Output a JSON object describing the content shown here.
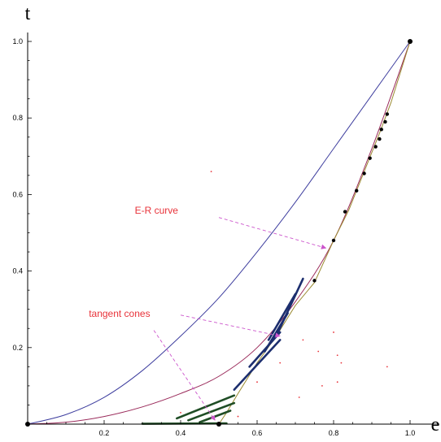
{
  "chart_data": {
    "type": "line",
    "xlabel": "e",
    "ylabel": "t",
    "xlim": [
      0,
      1.0
    ],
    "ylim": [
      0,
      1.0
    ],
    "x_ticks": [
      "0.2",
      "0.4",
      "0.6",
      "0.8",
      "1.0"
    ],
    "y_ticks": [
      "0.2",
      "0.4",
      "0.6",
      "0.8",
      "1.0"
    ],
    "colors": {
      "blue_curve": "#3d3d9e",
      "er_curve": "#9a2a5a",
      "upper_segment": "#9a8a30",
      "tangent_lines": "#1c2e6e",
      "lower_tangent_lines": "#1f4d25",
      "annotation": "#e8333a",
      "annotation_arrow": "#cc55cc",
      "points": "#000000",
      "scatter_dots": "#e8333a"
    },
    "series": [
      {
        "id": "upper-curve",
        "kind": "curve",
        "color_key": "blue_curve",
        "points": [
          [
            0,
            0
          ],
          [
            0.1,
            0.025
          ],
          [
            0.2,
            0.07
          ],
          [
            0.3,
            0.14
          ],
          [
            0.4,
            0.23
          ],
          [
            0.5,
            0.33
          ],
          [
            0.6,
            0.45
          ],
          [
            0.7,
            0.58
          ],
          [
            0.8,
            0.72
          ],
          [
            0.9,
            0.86
          ],
          [
            1.0,
            1.0
          ]
        ]
      },
      {
        "id": "er-curve",
        "kind": "curve",
        "color_key": "er_curve",
        "points": [
          [
            0,
            0
          ],
          [
            0.1,
            0.005
          ],
          [
            0.2,
            0.02
          ],
          [
            0.3,
            0.045
          ],
          [
            0.4,
            0.08
          ],
          [
            0.5,
            0.125
          ],
          [
            0.6,
            0.2
          ],
          [
            0.7,
            0.32
          ],
          [
            0.8,
            0.48
          ],
          [
            0.9,
            0.72
          ],
          [
            1.0,
            1.0
          ]
        ]
      },
      {
        "id": "polygonal-line",
        "kind": "curve",
        "color_key": "upper_segment",
        "points": [
          [
            0.5,
            0
          ],
          [
            0.52,
            0.03
          ],
          [
            0.55,
            0.08
          ],
          [
            0.6,
            0.16
          ],
          [
            0.65,
            0.23
          ],
          [
            0.7,
            0.31
          ],
          [
            0.75,
            0.37
          ],
          [
            0.8,
            0.48
          ],
          [
            0.84,
            0.56
          ],
          [
            0.88,
            0.66
          ],
          [
            0.92,
            0.76
          ],
          [
            0.95,
            0.84
          ],
          [
            1.0,
            1.0
          ]
        ]
      },
      {
        "id": "bottom-line",
        "kind": "curve",
        "color_key": "upper_segment",
        "points": [
          [
            0.0,
            0.0
          ],
          [
            0.5,
            0.0
          ]
        ]
      }
    ],
    "segments": [
      {
        "color_key": "tangent_lines",
        "from": [
          0.54,
          0.09
        ],
        "to": [
          0.66,
          0.22
        ]
      },
      {
        "color_key": "tangent_lines",
        "from": [
          0.58,
          0.15
        ],
        "to": [
          0.66,
          0.24
        ]
      },
      {
        "color_key": "tangent_lines",
        "from": [
          0.62,
          0.19
        ],
        "to": [
          0.68,
          0.29
        ]
      },
      {
        "color_key": "tangent_lines",
        "from": [
          0.63,
          0.22
        ],
        "to": [
          0.7,
          0.34
        ]
      },
      {
        "color_key": "tangent_lines",
        "from": [
          0.65,
          0.23
        ],
        "to": [
          0.72,
          0.38
        ]
      },
      {
        "color_key": "lower_tangent_lines",
        "from": [
          0.39,
          0.015
        ],
        "to": [
          0.54,
          0.075
        ]
      },
      {
        "color_key": "lower_tangent_lines",
        "from": [
          0.42,
          0.01
        ],
        "to": [
          0.54,
          0.055
        ]
      },
      {
        "color_key": "lower_tangent_lines",
        "from": [
          0.45,
          0.005
        ],
        "to": [
          0.53,
          0.035
        ]
      },
      {
        "color_key": "lower_tangent_lines",
        "from": [
          0.3,
          0.001
        ],
        "to": [
          0.52,
          0.002
        ]
      }
    ],
    "points": [
      [
        0,
        0
      ],
      [
        0.5,
        0
      ],
      [
        0.75,
        0.375
      ],
      [
        0.8,
        0.48
      ],
      [
        0.83,
        0.555
      ],
      [
        0.86,
        0.61
      ],
      [
        0.88,
        0.655
      ],
      [
        0.895,
        0.695
      ],
      [
        0.91,
        0.725
      ],
      [
        0.92,
        0.745
      ],
      [
        0.925,
        0.77
      ],
      [
        0.935,
        0.79
      ],
      [
        0.94,
        0.81
      ],
      [
        1.0,
        1.0
      ]
    ],
    "scatter_dots": [
      [
        0.48,
        0.66
      ],
      [
        0.66,
        0.16
      ],
      [
        0.72,
        0.22
      ],
      [
        0.76,
        0.19
      ],
      [
        0.8,
        0.24
      ],
      [
        0.81,
        0.18
      ],
      [
        0.82,
        0.16
      ],
      [
        0.81,
        0.11
      ],
      [
        0.77,
        0.1
      ],
      [
        0.71,
        0.07
      ],
      [
        0.94,
        0.15
      ],
      [
        0.4,
        0.03
      ],
      [
        0.55,
        0.02
      ],
      [
        0.6,
        0.11
      ]
    ],
    "annotations": [
      {
        "label": "E-R curve",
        "text_pos": [
          0.28,
          0.55
        ],
        "arrow_from": [
          0.5,
          0.54
        ],
        "arrow_to": [
          0.78,
          0.46
        ]
      },
      {
        "label": "tangent cones",
        "text_pos": [
          0.16,
          0.28
        ],
        "arrow_from_1": [
          0.4,
          0.285
        ],
        "arrow_to_1": [
          0.66,
          0.23
        ],
        "arrow_from_2": [
          0.33,
          0.245
        ],
        "arrow_to_2": [
          0.49,
          0.01
        ]
      }
    ]
  }
}
